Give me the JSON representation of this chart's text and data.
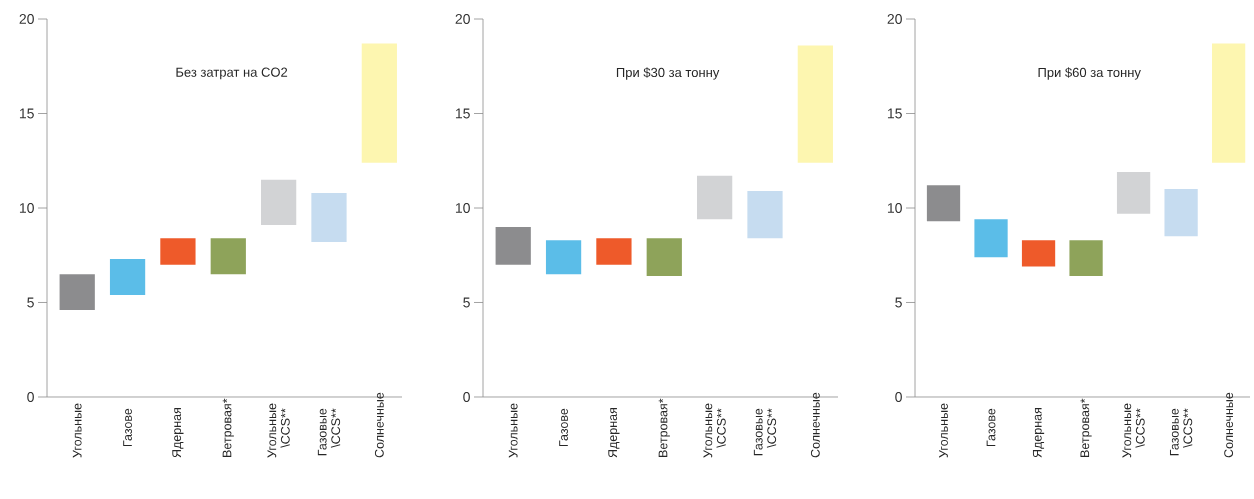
{
  "chart_data": [
    {
      "type": "bar",
      "title": "Без затрат на CO2",
      "categories": [
        "Угольные",
        "Газове",
        "Ядерная",
        "Ветровая*",
        "Угольные \\CCS**",
        "Газовые \\CCS**",
        "Солнечные"
      ],
      "base": [
        4.6,
        5.4,
        7.0,
        6.5,
        9.1,
        8.2,
        12.4
      ],
      "values": [
        1.9,
        1.9,
        1.4,
        1.9,
        2.4,
        2.6,
        6.3
      ],
      "colors": [
        "#8c8c8e",
        "#5bbde8",
        "#ee5a2a",
        "#8ea35a",
        "#d2d3d5",
        "#c6dcf0",
        "#fdf6b0"
      ],
      "ylim": [
        0,
        20
      ],
      "yticks": [
        0,
        5,
        10,
        15,
        20
      ]
    },
    {
      "type": "bar",
      "title": "При  $30 за тонну",
      "categories": [
        "Угольные",
        "Газове",
        "Ядерная",
        "Ветровая*",
        "Угольные \\CCS**",
        "Газовые \\CCS**",
        "Солнечные"
      ],
      "base": [
        7.0,
        6.5,
        7.0,
        6.4,
        9.4,
        8.4,
        12.4
      ],
      "values": [
        2.0,
        1.8,
        1.4,
        2.0,
        2.3,
        2.5,
        6.2
      ],
      "colors": [
        "#8c8c8e",
        "#5bbde8",
        "#ee5a2a",
        "#8ea35a",
        "#d2d3d5",
        "#c6dcf0",
        "#fdf6b0"
      ],
      "ylim": [
        0,
        20
      ],
      "yticks": [
        0,
        5,
        10,
        15,
        20
      ]
    },
    {
      "type": "bar",
      "title": "При $60 за тонну",
      "categories": [
        "Угольные",
        "Газове",
        "Ядерная",
        "Ветровая*",
        "Угольные \\CCS**",
        "Газовые \\CCS**",
        "Солнечные"
      ],
      "base": [
        9.3,
        7.4,
        6.9,
        6.4,
        9.7,
        8.5,
        12.4
      ],
      "values": [
        1.9,
        2.0,
        1.4,
        1.9,
        2.2,
        2.5,
        6.3
      ],
      "colors": [
        "#8c8c8e",
        "#5bbde8",
        "#ee5a2a",
        "#8ea35a",
        "#d2d3d5",
        "#c6dcf0",
        "#fdf6b0"
      ],
      "ylim": [
        0,
        20
      ],
      "yticks": [
        0,
        5,
        10,
        15,
        20
      ]
    }
  ]
}
